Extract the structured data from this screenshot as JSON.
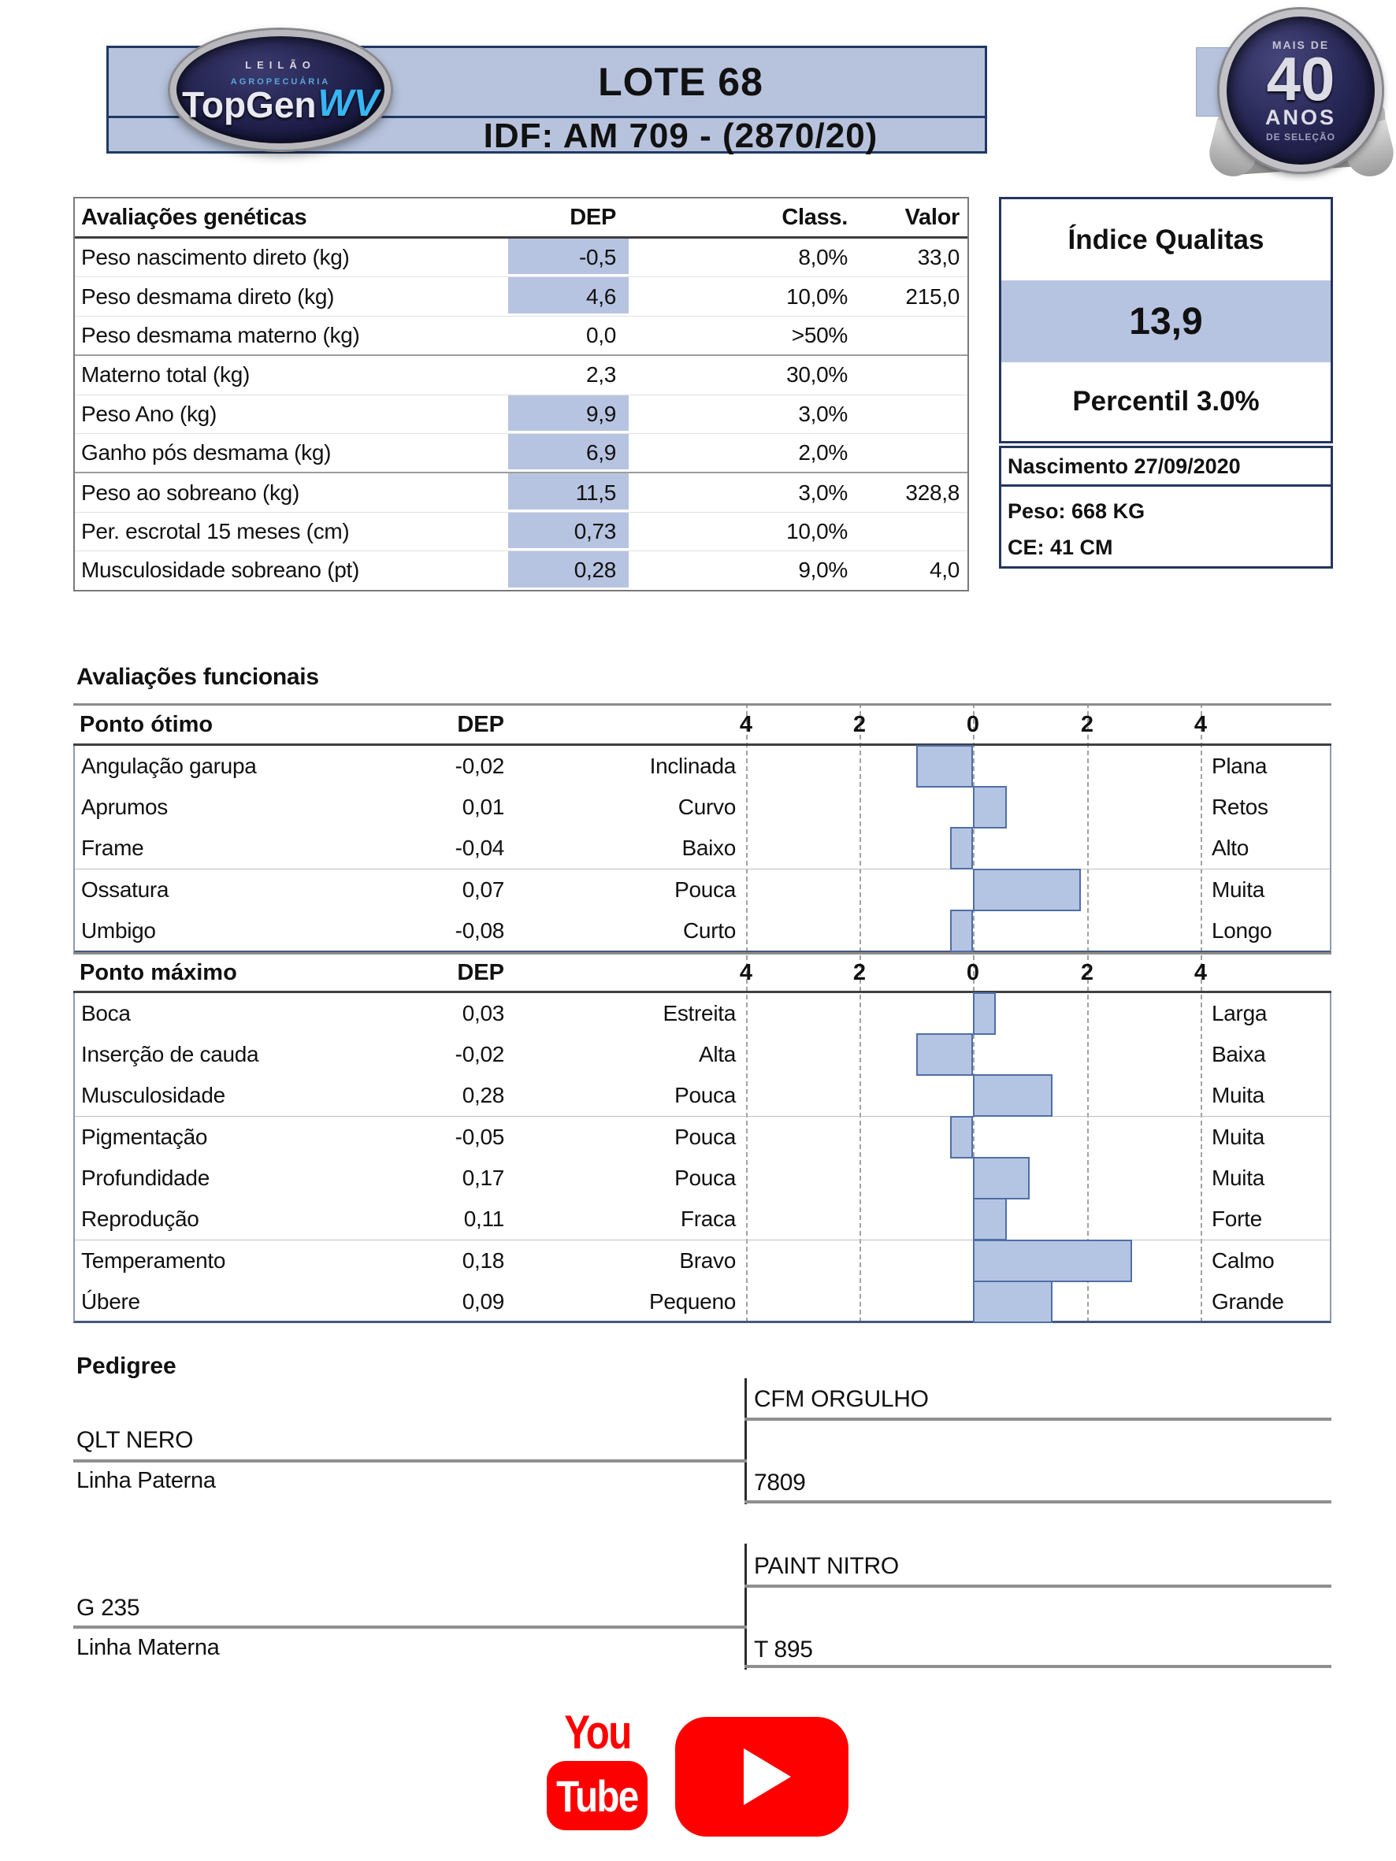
{
  "header": {
    "lot_title": "LOTE 68",
    "idf_line": "IDF: AM 709 - (2870/20)"
  },
  "logo": {
    "line1": "LEILÃO",
    "line2": "AGROPECUÁRIA",
    "name": "TopGen",
    "suffix": "WV"
  },
  "badge": {
    "top": "MAIS DE",
    "number": "40",
    "unit": "ANOS",
    "bottom": "DE SELEÇÃO"
  },
  "genetic_table": {
    "headers": {
      "name": "Avaliações genéticas",
      "dep": "DEP",
      "class": "Class.",
      "valor": "Valor"
    },
    "rows": [
      {
        "label": "Peso nascimento direto (kg)",
        "dep": "-0,5",
        "class": "8,0%",
        "valor": "33,0",
        "highlighted": true
      },
      {
        "label": "Peso desmama direto (kg)",
        "dep": "4,6",
        "class": "10,0%",
        "valor": "215,0",
        "highlighted": true
      },
      {
        "label": "Peso desmama materno (kg)",
        "dep": "0,0",
        "class": ">50%",
        "valor": "",
        "highlighted": false
      },
      {
        "label": "Materno total (kg)",
        "dep": "2,3",
        "class": "30,0%",
        "valor": "",
        "highlighted": false
      },
      {
        "label": "Peso Ano (kg)",
        "dep": "9,9",
        "class": "3,0%",
        "valor": "",
        "highlighted": true
      },
      {
        "label": "Ganho pós desmama (kg)",
        "dep": "6,9",
        "class": "2,0%",
        "valor": "",
        "highlighted": true
      },
      {
        "label": "Peso ao sobreano (kg)",
        "dep": "11,5",
        "class": "3,0%",
        "valor": "328,8",
        "highlighted": true
      },
      {
        "label": "Per. escrotal 15 meses (cm)",
        "dep": "0,73",
        "class": "10,0%",
        "valor": "",
        "highlighted": true
      },
      {
        "label": "Musculosidade sobreano (pt)",
        "dep": "0,28",
        "class": "9,0%",
        "valor": "4,0",
        "highlighted": true
      }
    ]
  },
  "index_panel": {
    "title": "Índice Qualitas",
    "value": "13,9",
    "percentile": "Percentil 3.0%",
    "birth": "Nascimento 27/09/2020",
    "weight": "Peso: 668 KG",
    "scrotal": "CE: 41 CM"
  },
  "functional": {
    "section_title": "Avaliações funcionais",
    "dep_header": "DEP",
    "axis_ticks": [
      "4",
      "2",
      "0",
      "2",
      "4"
    ],
    "optimal": {
      "header": "Ponto ótimo",
      "rows": [
        {
          "label": "Angulação garupa",
          "dep": "-0,02",
          "left": "Inclinada",
          "right": "Plana"
        },
        {
          "label": "Aprumos",
          "dep": "0,01",
          "left": "Curvo",
          "right": "Retos"
        },
        {
          "label": "Frame",
          "dep": "-0,04",
          "left": "Baixo",
          "right": "Alto"
        },
        {
          "label": "Ossatura",
          "dep": "0,07",
          "left": "Pouca",
          "right": "Muita"
        },
        {
          "label": "Umbigo",
          "dep": "-0,08",
          "left": "Curto",
          "right": "Longo"
        }
      ]
    },
    "maximum": {
      "header": "Ponto máximo",
      "rows": [
        {
          "label": "Boca",
          "dep": "0,03",
          "left": "Estreita",
          "right": "Larga"
        },
        {
          "label": "Inserção de cauda",
          "dep": "-0,02",
          "left": "Alta",
          "right": "Baixa"
        },
        {
          "label": "Musculosidade",
          "dep": "0,28",
          "left": "Pouca",
          "right": "Muita"
        },
        {
          "label": "Pigmentação",
          "dep": "-0,05",
          "left": "Pouca",
          "right": "Muita"
        },
        {
          "label": "Profundidade",
          "dep": "0,17",
          "left": "Pouca",
          "right": "Muita"
        },
        {
          "label": "Reprodução",
          "dep": "0,11",
          "left": "Fraca",
          "right": "Forte"
        },
        {
          "label": "Temperamento",
          "dep": "0,18",
          "left": "Bravo",
          "right": "Calmo"
        },
        {
          "label": "Úbere",
          "dep": "0,09",
          "left": "Pequeno",
          "right": "Grande"
        }
      ]
    }
  },
  "chart_data": [
    {
      "type": "bar",
      "orientation": "horizontal",
      "title": "Ponto ótimo",
      "categories": [
        "Angulação garupa",
        "Aprumos",
        "Frame",
        "Ossatura",
        "Umbigo"
      ],
      "dep_values": [
        -0.02,
        0.01,
        -0.04,
        0.07,
        -0.08
      ],
      "values": [
        -1.0,
        0.6,
        -0.4,
        1.9,
        -0.4
      ],
      "left_labels": [
        "Inclinada",
        "Curvo",
        "Baixo",
        "Pouca",
        "Curto"
      ],
      "right_labels": [
        "Plana",
        "Retos",
        "Alto",
        "Muita",
        "Longo"
      ],
      "xlim": [
        -5,
        5
      ],
      "ticks": [
        -4,
        -2,
        0,
        2,
        4
      ],
      "grid": "dashed-vertical",
      "bar_fill": "#b4c4e3",
      "bar_border": "#4f6fa5"
    },
    {
      "type": "bar",
      "orientation": "horizontal",
      "title": "Ponto máximo",
      "categories": [
        "Boca",
        "Inserção de cauda",
        "Musculosidade",
        "Pigmentação",
        "Profundidade",
        "Reprodução",
        "Temperamento",
        "Úbere"
      ],
      "dep_values": [
        0.03,
        -0.02,
        0.28,
        -0.05,
        0.17,
        0.11,
        0.18,
        0.09
      ],
      "values": [
        0.4,
        -1.0,
        1.4,
        -0.4,
        1.0,
        0.6,
        2.8,
        1.4
      ],
      "left_labels": [
        "Estreita",
        "Alta",
        "Pouca",
        "Pouca",
        "Pouca",
        "Fraca",
        "Bravo",
        "Pequeno"
      ],
      "right_labels": [
        "Larga",
        "Baixa",
        "Muita",
        "Muita",
        "Muita",
        "Forte",
        "Calmo",
        "Grande"
      ],
      "xlim": [
        -5,
        5
      ],
      "ticks": [
        -4,
        -2,
        0,
        2,
        4
      ],
      "grid": "dashed-vertical",
      "bar_fill": "#b4c4e3",
      "bar_border": "#4f6fa5"
    }
  ],
  "pedigree": {
    "title": "Pedigree",
    "paternal": {
      "sire": "QLT NERO",
      "line_label": "Linha Paterna",
      "grandsire": "CFM ORGULHO",
      "granddam": "7809"
    },
    "maternal": {
      "dam": "G 235",
      "line_label": "Linha Materna",
      "grandsire": "PAINT NITRO",
      "granddam": "T 895"
    }
  },
  "footer": {
    "youtube_word_top": "You",
    "youtube_word_bottom": "Tube"
  },
  "colors": {
    "header_bg": "#b7c3dd",
    "navy_border": "#203864",
    "highlight": "#b7c4e1",
    "bar_fill": "#b4c4e3",
    "bar_border": "#4f6fa5",
    "youtube_red": "#fe0000",
    "badge_navy": "#232350"
  }
}
